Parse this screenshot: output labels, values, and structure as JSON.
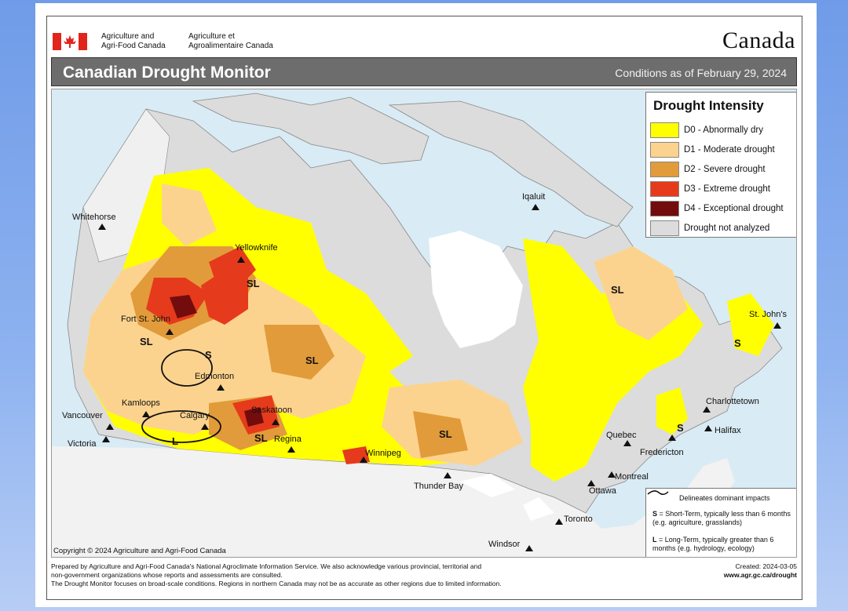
{
  "header": {
    "dept_en_line1": "Agriculture and",
    "dept_en_line2": "Agri-Food Canada",
    "dept_fr_line1": "Agriculture et",
    "dept_fr_line2": "Agroalimentaire Canada",
    "wordmark": "Canada",
    "title": "Canadian Drought Monitor",
    "conditions": "Conditions as of February 29, 2024"
  },
  "legend": {
    "title": "Drought Intensity",
    "items": [
      {
        "label": "D0 - Abnormally dry",
        "color": "#ffff00"
      },
      {
        "label": "D1 - Moderate drought",
        "color": "#fcd38e"
      },
      {
        "label": "D2 - Severe drought",
        "color": "#e29b3a"
      },
      {
        "label": "D3 - Extreme drought",
        "color": "#e63a1c"
      },
      {
        "label": "D4 - Exceptional drought",
        "color": "#730c0c"
      },
      {
        "label": "Drought not analyzed",
        "color": "#dcdcdc"
      }
    ]
  },
  "cities": {
    "whitehorse": "Whitehorse",
    "yellowknife": "Yellowknife",
    "iqaluit": "Iqaluit",
    "fort_st_john": "Fort St. John",
    "edmonton": "Edmonton",
    "kamloops": "Kamloops",
    "vancouver": "Vancouver",
    "victoria": "Victoria",
    "calgary": "Calgary",
    "saskatoon": "Saskatoon",
    "regina": "Regina",
    "winnipeg": "Winnipeg",
    "thunder_bay": "Thunder Bay",
    "quebec": "Quebec",
    "fredericton": "Fredericton",
    "montreal": "Montreal",
    "ottawa": "Ottawa",
    "toronto": "Toronto",
    "windsor": "Windsor",
    "charlottetown": "Charlottetown",
    "halifax": "Halifax",
    "st_johns": "St. John's"
  },
  "impact_codes": {
    "sl": "SL",
    "s": "S",
    "l": "L"
  },
  "impact_legend": {
    "line_label": "Delineates dominant impacts",
    "s_key": "S",
    "s_text": "= Short-Term, typically less than 6 months (e.g. agriculture, grasslands)",
    "l_key": "L",
    "l_text": "= Long-Term, typically greater  than 6 months (e.g. hydrology, ecology)"
  },
  "copyright": "Copyright © 2024 Agriculture and Agri-Food Canada",
  "footer": {
    "note_line1": "Prepared by Agriculture and Agri-Food Canada's National Agroclimate Information Service.  We also acknowledge various provincial, territorial and",
    "note_line2": "non-government organizations whose reports and assessments are consulted.",
    "note_line3": "The Drought Monitor focuses on broad-scale conditions.  Regions in northern Canada may not be as accurate as other regions due to limited information.",
    "created": "Created:  2024-03-05",
    "website": "www.agr.gc.ca/drought"
  }
}
